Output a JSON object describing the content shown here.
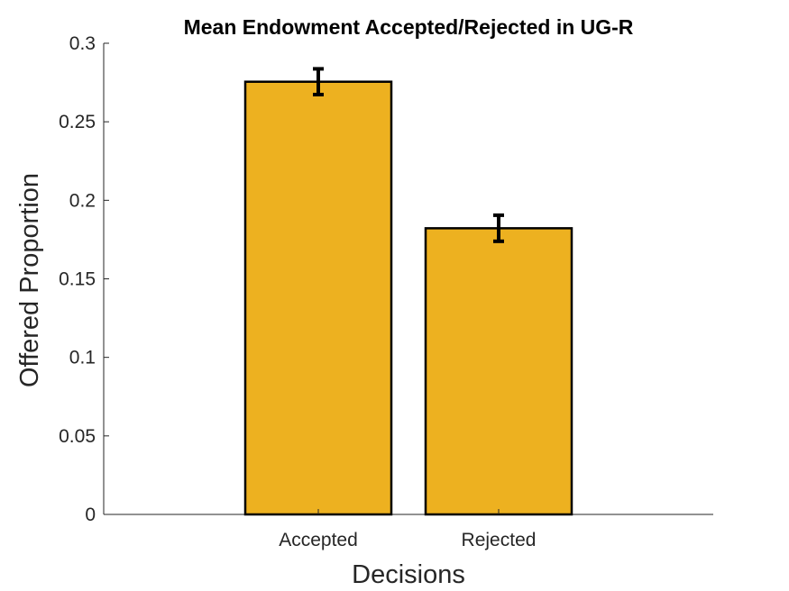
{
  "chart_data": {
    "type": "bar",
    "title": "Mean Endowment Accepted/Rejected in UG-R",
    "xlabel": "Decisions",
    "ylabel": "Offered Proportion",
    "categories": [
      "Accepted",
      "Rejected"
    ],
    "values": [
      0.2755,
      0.1822
    ],
    "error": [
      0.0082,
      0.0083
    ],
    "ylim": [
      0,
      0.3
    ],
    "yticks": [
      0,
      0.05,
      0.1,
      0.15,
      0.2,
      0.25,
      0.3
    ],
    "ytick_labels": [
      "0",
      "0.05",
      "0.1",
      "0.15",
      "0.2",
      "0.25",
      "0.3"
    ],
    "bar_color": "#EDB120",
    "grid": false,
    "legend": "none"
  }
}
